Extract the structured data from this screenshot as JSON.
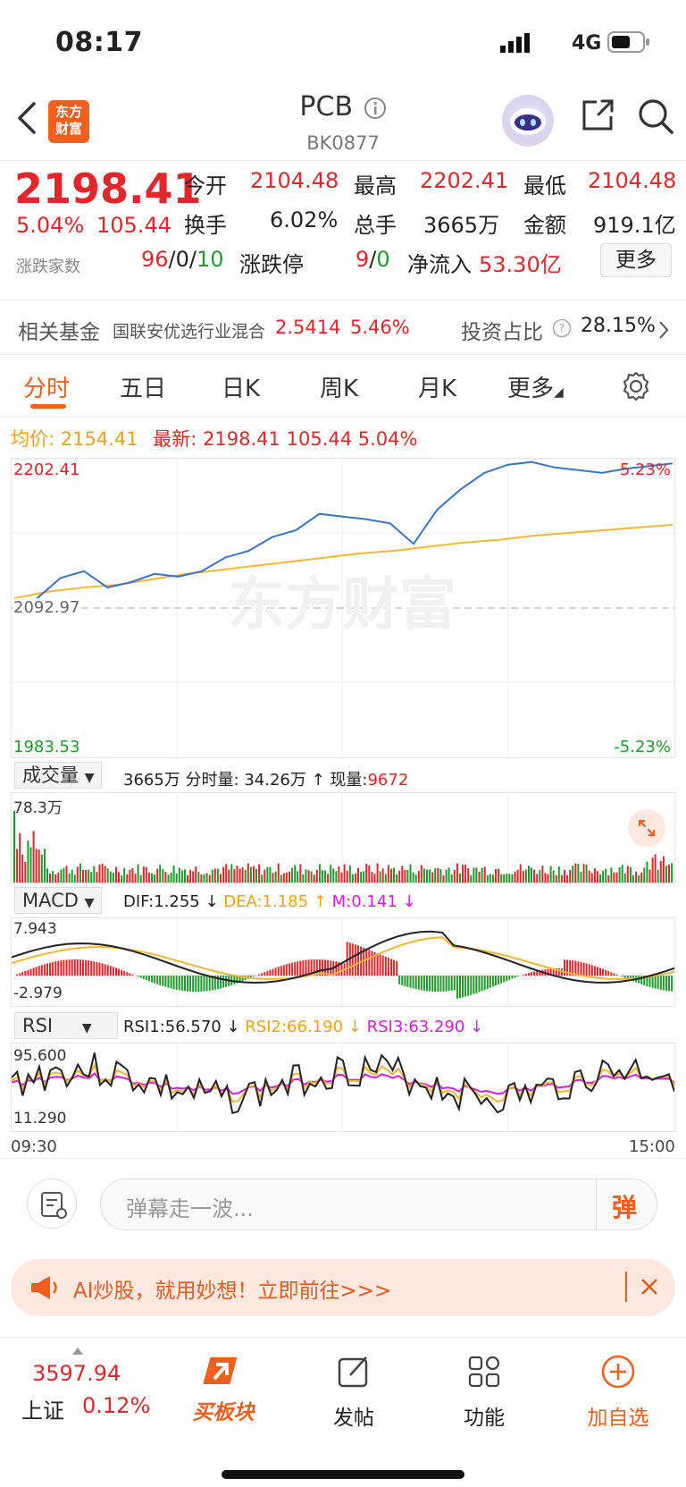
{
  "status_bar": {
    "time": "08:17",
    "network": "4G"
  },
  "header": {
    "logo_text": "东方财富",
    "title": "PCB",
    "code": "BK0877"
  },
  "quote": {
    "price": "2198.41",
    "change_pct": "5.04%",
    "change": "105.44",
    "open_label": "今开",
    "open": "2104.48",
    "high_label": "最高",
    "high": "2202.41",
    "low_label": "最低",
    "low": "2104.48",
    "turnover_label": "换手",
    "turnover": "6.02%",
    "volume_label": "总手",
    "volume": "3665万",
    "amount_label": "金额",
    "amount": "919.1亿",
    "breadth_label": "涨跌家数",
    "breadth_up": "96",
    "breadth_flat": "0",
    "breadth_down": "10",
    "limit_label": "涨跌停",
    "limit_up": "9",
    "limit_down": "0",
    "inflow_label": "净流入",
    "inflow": "53.30亿",
    "more_label": "更多"
  },
  "fund": {
    "label": "相关基金",
    "name": "国联安优选行业混合",
    "nav": "2.5414",
    "pct": "5.46%",
    "ratio_label": "投资占比",
    "ratio": "28.15%"
  },
  "tabs": [
    {
      "label": "分时",
      "active": true
    },
    {
      "label": "五日"
    },
    {
      "label": "日K"
    },
    {
      "label": "周K"
    },
    {
      "label": "月K"
    },
    {
      "label": "更多"
    }
  ],
  "chart_info": {
    "avg_label": "均价:",
    "avg": "2154.41",
    "latest_label": "最新:",
    "latest": "2198.41",
    "change": "105.44",
    "pct": "5.04%"
  },
  "chart_data": {
    "type": "line",
    "y_high": "2202.41",
    "y_mid": "2092.97",
    "y_low": "1983.53",
    "pct_high": "5.23%",
    "pct_low": "-5.23%",
    "ylim": [
      1983.53,
      2202.41
    ],
    "x_start": "09:30",
    "x_end": "15:00",
    "series": [
      {
        "color": "#3a75c4",
        "values": [
          2095,
          2100,
          2115,
          2120,
          2108,
          2112,
          2118,
          2116,
          2120,
          2130,
          2135,
          2145,
          2150,
          2162,
          2160,
          2158,
          2155,
          2140,
          2165,
          2180,
          2192,
          2198,
          2200,
          2196,
          2194,
          2192,
          2195,
          2197,
          2199
        ]
      },
      {
        "color": "#f7b733",
        "values": [
          2100,
          2105,
          2108,
          2110,
          2114,
          2118,
          2121,
          2124,
          2127,
          2130,
          2133,
          2135,
          2138,
          2141,
          2143,
          2146,
          2148,
          2150,
          2152,
          2154
        ]
      }
    ],
    "volume": {
      "label": "成交量",
      "total": "3665万",
      "bar_label": "分时量: 34.26万",
      "now_label": "现量:",
      "now": "9672",
      "max": "78.3万"
    },
    "macd": {
      "label": "MACD",
      "dif": "DIF:1.255",
      "dea": "DEA:1.185",
      "m": "M:0.141",
      "max": "7.943",
      "min": "-2.979"
    },
    "rsi": {
      "label": "RSI",
      "rsi1": "RSI1:56.570",
      "rsi2": "RSI2:66.190",
      "rsi3": "RSI3:63.290",
      "max": "95.600",
      "min": "11.290"
    }
  },
  "watermark": "东方财富",
  "comment": {
    "placeholder": "弹幕走一波...",
    "danmu": "弹"
  },
  "banner": {
    "text": "AI炒股，就用妙想！立即前往>>>"
  },
  "bottom": {
    "index_value": "3597.94",
    "index_name": "上证",
    "index_pct": "0.12%",
    "nav": [
      {
        "label": "买板块"
      },
      {
        "label": "发帖"
      },
      {
        "label": "功能"
      },
      {
        "label": "加自选"
      }
    ]
  },
  "colors": {
    "up": "#e4262a",
    "down": "#1f9a2c",
    "accent": "#f0601c",
    "avg_line": "#f7b733",
    "price_line": "#3a75c4"
  }
}
